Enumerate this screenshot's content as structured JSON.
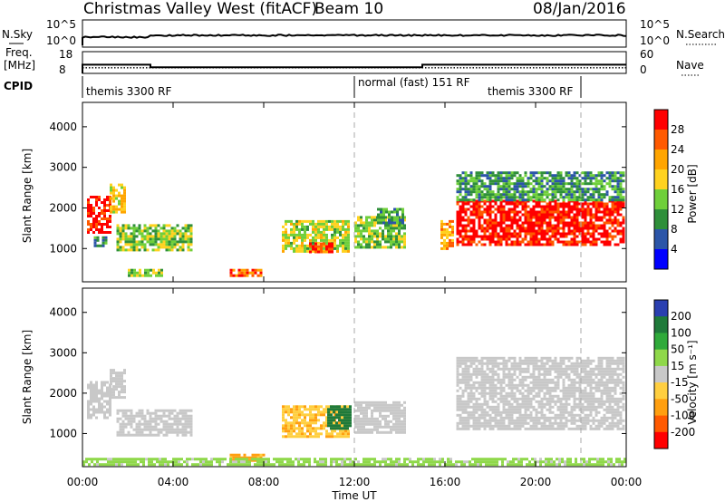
{
  "header": {
    "title": "Christmas Valley West (fitACF)",
    "beam": "Beam 10",
    "date": "08/Jan/2016"
  },
  "top_panels": {
    "nsky_label": "N.Sky",
    "nsearch_label": "N.Search",
    "nsky_ticks": [
      "10^5",
      "10^0"
    ],
    "nsearch_ticks": [
      "10^5",
      "10^0"
    ],
    "freq_label_1": "Freq.",
    "freq_label_2": "[MHz]",
    "freq_ticks": [
      "18",
      "8"
    ],
    "nave_label": "Nave",
    "nave_ticks": [
      "60",
      "0"
    ],
    "cpid_label": "CPID",
    "cpid_segments": [
      {
        "label": "themis 3300 RF",
        "start_hr": 0,
        "end_hr": 12
      },
      {
        "label": "normal (fast) 151 RF",
        "start_hr": 12,
        "end_hr": 22
      },
      {
        "label": "themis 3300 RF",
        "start_hr": 16.5,
        "end_hr": 22
      }
    ]
  },
  "colors": {
    "power": [
      "#0000ff",
      "#2b55a8",
      "#2f8f3a",
      "#6fcf3a",
      "#ffd21f",
      "#ffa500",
      "#ff5a00",
      "#ff0000"
    ],
    "velocity": [
      "#2a3fb0",
      "#1f7a3a",
      "#2faa3a",
      "#8fd84a",
      "#c8c8c8",
      "#ffcf40",
      "#ff9f10",
      "#ff5a00",
      "#ff0000"
    ]
  },
  "chart_data": [
    {
      "type": "heatmap",
      "name": "Power",
      "xlabel": "",
      "ylabel": "Slant Range [km]",
      "xlim": [
        0,
        24
      ],
      "ylim": [
        180,
        4600
      ],
      "yticks": [
        1000,
        2000,
        3000,
        4000
      ],
      "colorbar_label": "Power [dB]",
      "colorbar_ticks": [
        "28",
        "24",
        "20",
        "16",
        "12",
        "8",
        "4"
      ],
      "colorbar_range": [
        0,
        32
      ],
      "regions": [
        {
          "x": [
            0.2,
            1.2
          ],
          "y": [
            1400,
            2300
          ],
          "value": 30
        },
        {
          "x": [
            1.2,
            1.9
          ],
          "y": [
            1900,
            2600
          ],
          "value": 18
        },
        {
          "x": [
            1.5,
            4.8
          ],
          "y": [
            950,
            1600
          ],
          "value": 14
        },
        {
          "x": [
            0.5,
            1.0
          ],
          "y": [
            1050,
            1300
          ],
          "value": 10
        },
        {
          "x": [
            2.0,
            3.5
          ],
          "y": [
            350,
            500
          ],
          "value": 14
        },
        {
          "x": [
            6.5,
            8.0
          ],
          "y": [
            300,
            500
          ],
          "value": 26
        },
        {
          "x": [
            8.8,
            11.8
          ],
          "y": [
            950,
            1700
          ],
          "value": 16
        },
        {
          "x": [
            10.0,
            11.0
          ],
          "y": [
            900,
            1150
          ],
          "value": 28
        },
        {
          "x": [
            12.0,
            14.2
          ],
          "y": [
            1050,
            1800
          ],
          "value": 14
        },
        {
          "x": [
            13.0,
            14.2
          ],
          "y": [
            1600,
            2000
          ],
          "value": 10
        },
        {
          "x": [
            15.8,
            16.3
          ],
          "y": [
            1000,
            1700
          ],
          "value": 22
        },
        {
          "x": [
            16.5,
            23.9
          ],
          "y": [
            1100,
            2200
          ],
          "value": 30
        },
        {
          "x": [
            16.5,
            23.9
          ],
          "y": [
            2200,
            2900
          ],
          "value": 10
        }
      ]
    },
    {
      "type": "heatmap",
      "name": "Velocity",
      "xlabel": "Time UT",
      "ylabel": "Slant Range [km]",
      "xlim": [
        0,
        24
      ],
      "ylim": [
        180,
        4600
      ],
      "yticks": [
        1000,
        2000,
        3000,
        4000
      ],
      "xticks": [
        "00:00",
        "04:00",
        "08:00",
        "12:00",
        "16:00",
        "20:00",
        "00:00"
      ],
      "colorbar_label": "Velocity [m s⁻¹]",
      "colorbar_ticks": [
        "200",
        "100",
        "50",
        "15",
        "-15",
        "-50",
        "-100",
        "-200"
      ],
      "regions": [
        {
          "x": [
            0.2,
            1.2
          ],
          "y": [
            1400,
            2300
          ],
          "value": 0
        },
        {
          "x": [
            1.2,
            1.9
          ],
          "y": [
            1900,
            2600
          ],
          "value": 0
        },
        {
          "x": [
            1.5,
            4.8
          ],
          "y": [
            950,
            1600
          ],
          "value": 0
        },
        {
          "x": [
            6.5,
            8.0
          ],
          "y": [
            300,
            500
          ],
          "value": -60
        },
        {
          "x": [
            8.8,
            11.8
          ],
          "y": [
            950,
            1700
          ],
          "value": -40
        },
        {
          "x": [
            10.8,
            11.8
          ],
          "y": [
            1100,
            1700
          ],
          "value": 120
        },
        {
          "x": [
            12.0,
            14.2
          ],
          "y": [
            1050,
            1800
          ],
          "value": 0
        },
        {
          "x": [
            16.5,
            23.9
          ],
          "y": [
            1100,
            2900
          ],
          "value": 0
        },
        {
          "x": [
            0.0,
            24.0
          ],
          "y": [
            250,
            400
          ],
          "value": 30
        }
      ]
    }
  ]
}
